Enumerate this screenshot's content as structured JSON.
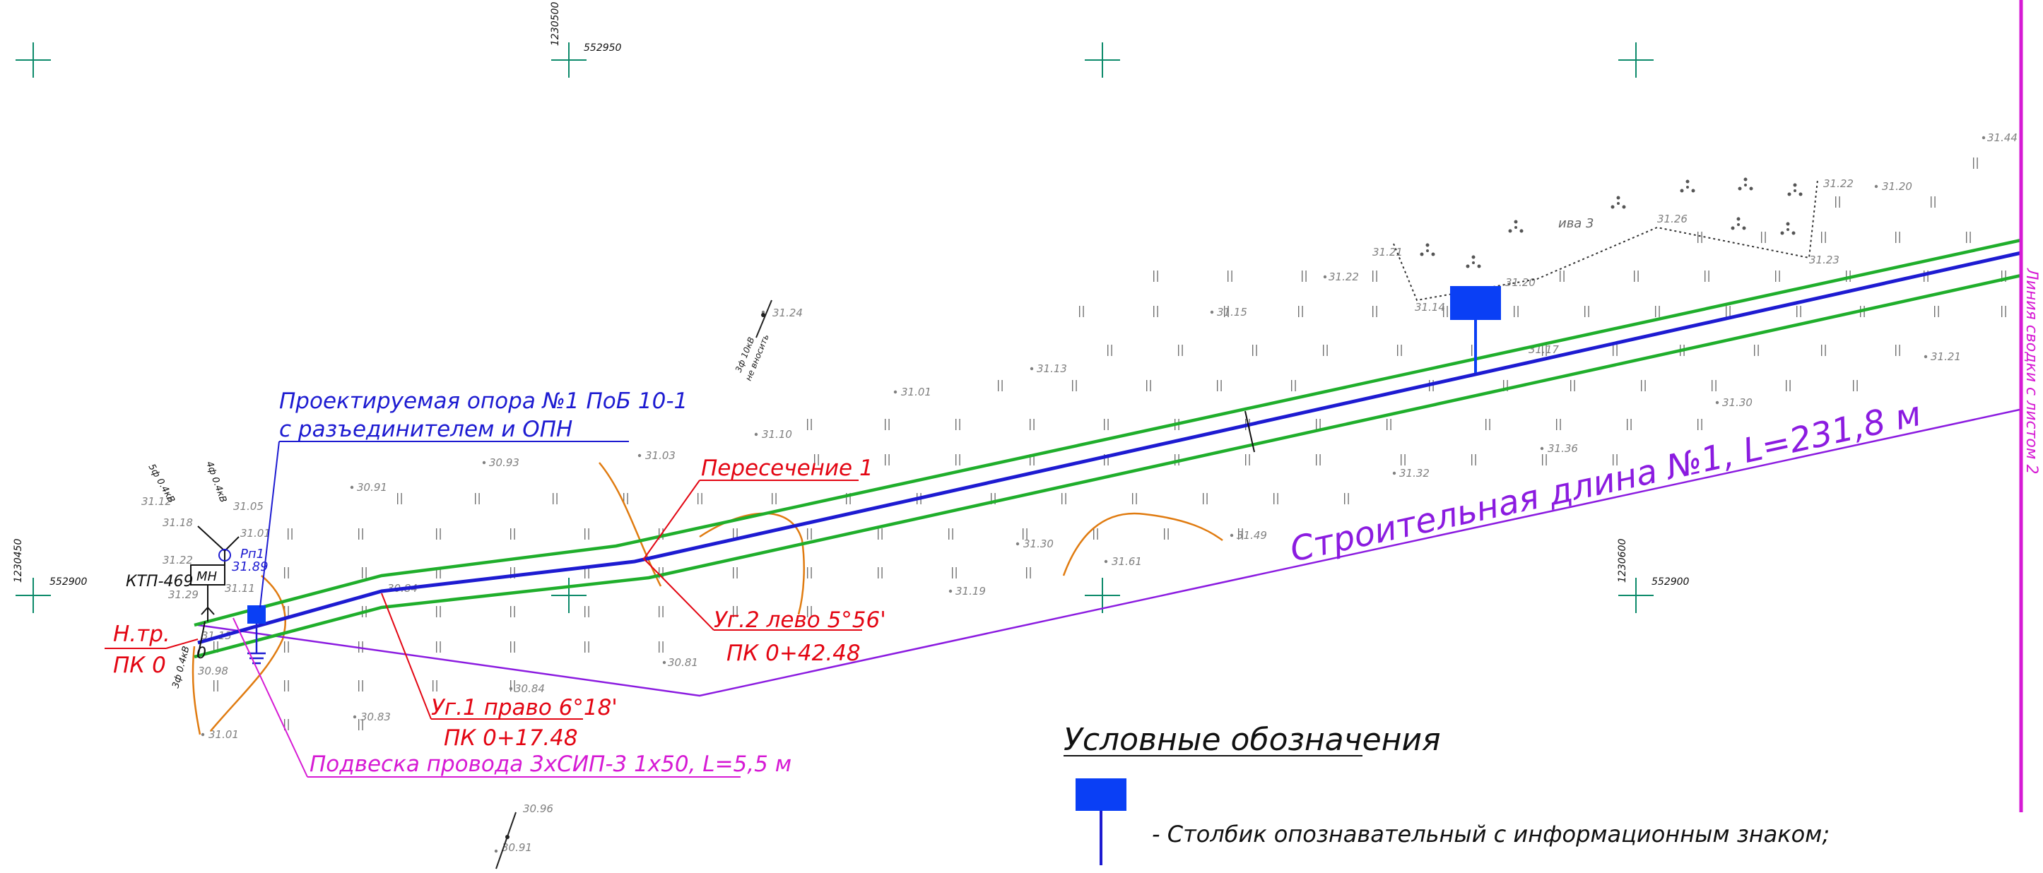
{
  "grid": {
    "top_x_label": "1230500",
    "top_y_label": "552950",
    "left_x_label": "1230450",
    "left_y_label": "552900",
    "right_x_label": "1230600",
    "right_y_label": "552900"
  },
  "labels": {
    "support_line1": "Проектируемая опора №1 ПоБ 10-1",
    "support_line2": "с разъединителем и ОПН",
    "crossing": "Пересечение 1",
    "start_line1": "Н.тр.",
    "start_line2": "ПК 0",
    "angle2_line1": "Уг.2 лево 5°56'",
    "angle2_line2": "ПК 0+42.48",
    "angle1_line1": "Уг.1 право 6°18'",
    "angle1_line2": "ПК 0+17.48",
    "suspension": "Подвеска провода 3хСИП-3 1х50, L=5,5 м",
    "construction_length": "Строительная длина №1, L=231,8 м",
    "match_line": "Линия сводки с листом 2",
    "ktp": "КТП-469",
    "mn": "МН",
    "rp_line1": "Рп1",
    "rp_line2": "31.89",
    "willow": "ива 3",
    "wire1": "5ф 0.4кВ",
    "wire2": "4ф 0.4кВ",
    "wire3": "3ф 10кВ",
    "wire4": "3ф 0.4кВ",
    "wire5": "не вносить"
  },
  "legend": {
    "title": "Условные обозначения",
    "item_text": "- Столбик опознавательный с информационным знаком;"
  },
  "elevations": {
    "e1": "31.44",
    "e2": "31.22",
    "e3": "31.20",
    "e4": "31.26",
    "e5": "31.23",
    "e6": "31.21",
    "e7": "31.22",
    "e8": "31.14",
    "e9": "31.20",
    "e10": "31.15",
    "e11": "31.24",
    "e12": "31.13",
    "e13": "31.01",
    "e14": "31.10",
    "e15": "31.03",
    "e16": "30.93",
    "e17": "30.91",
    "e18": "31.05",
    "e19": "31.01",
    "e20": "31.12",
    "e21": "31.18",
    "e22": "31.22",
    "e23": "31.29",
    "e24": "31.11",
    "e25": "31.13",
    "e26": "30.98",
    "e27": "31.01",
    "e28": "30.83",
    "e29": "30.84",
    "e30": "30.81",
    "e31": "31.30",
    "e32": "31.61",
    "e33": "31.49",
    "e34": "31.19",
    "e35": "31.32",
    "e36": "31.36",
    "e37": "31.30",
    "e38": "31.21",
    "e39": "30.96",
    "e40": "30.91",
    "e41": "30.84",
    "e42": "31.17"
  },
  "colors": {
    "route": "#1d1bd1",
    "buffer": "#1fae2b",
    "annotation": "#e30613",
    "suspension": "#d61ad4",
    "length": "#8b1be0",
    "crossing_curve": "#e07b10",
    "gridmark": "#0c8a6a"
  }
}
